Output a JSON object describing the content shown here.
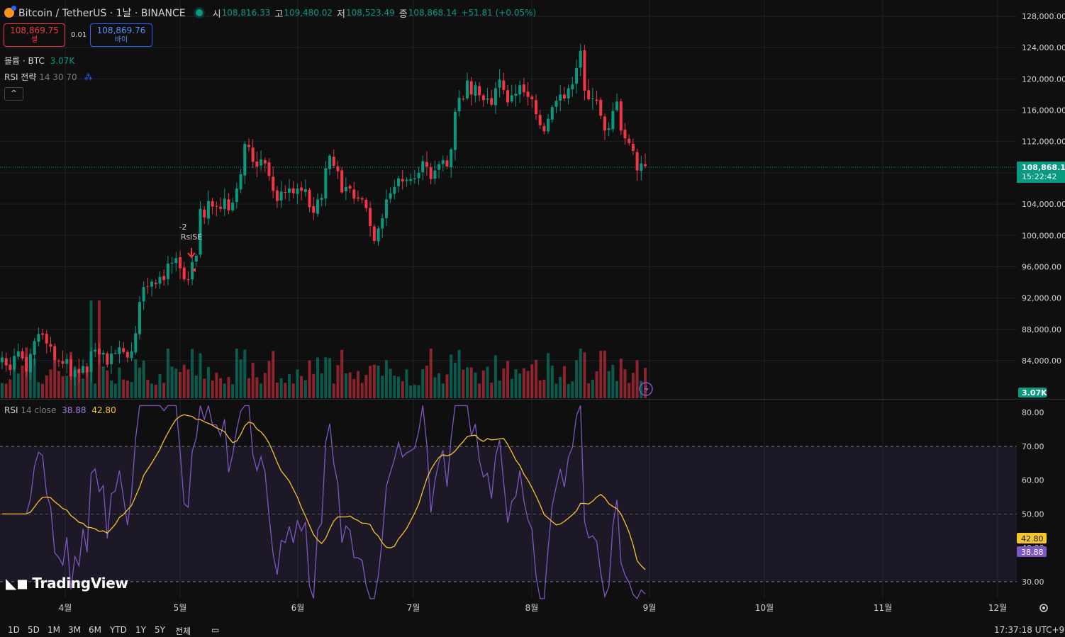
{
  "header": {
    "symbol": "Bitcoin / TetherUS · 1날 · BINANCE",
    "ohlc": [
      {
        "k": "시",
        "v": "108,816.33"
      },
      {
        "k": "고",
        "v": "109,480.02"
      },
      {
        "k": "저",
        "v": "108,523.49"
      },
      {
        "k": "종",
        "v": "108,868.14"
      }
    ],
    "change": "+51.81 (+0.05%)"
  },
  "trade": {
    "sell_price": "108,869.75",
    "sell_label": "셀",
    "spread": "0.01",
    "buy_price": "108,869.76",
    "buy_label": "바이"
  },
  "indicators": {
    "volume_label": "볼륨 · BTC",
    "volume_value": "3.07K",
    "strategy_label": "RSI 전략",
    "strategy_params": "14 30 70"
  },
  "rsi_legend": {
    "label": "RSI",
    "params": "14 close",
    "rsi_value": "38.88",
    "ma_value": "42.80"
  },
  "price_axis": [
    "128,000.00",
    "124,000.00",
    "120,000.00",
    "116,000.00",
    "112,000.00",
    "108,000.00",
    "104,000.00",
    "100,000.00",
    "96,000.00",
    "92,000.00",
    "88,000.00",
    "84,000.00"
  ],
  "rsi_axis": [
    "80.00",
    "70.00",
    "60.00",
    "50.00",
    "40.00",
    "30.00"
  ],
  "time_axis": [
    "4월",
    "5월",
    "6월",
    "7월",
    "8월",
    "9월",
    "10월",
    "11월",
    "12월"
  ],
  "last_price": {
    "price": "108,868.14",
    "countdown": "15:22:42"
  },
  "volume_badge": "3.07K",
  "rsi_badges": {
    "ma": "42.80",
    "rsi": "38.88"
  },
  "signal": {
    "qty": "-2",
    "name": "RsiSE"
  },
  "brand": "TradingView",
  "ranges": [
    "1D",
    "5D",
    "1M",
    "3M",
    "6M",
    "YTD",
    "1Y",
    "5Y",
    "전체"
  ],
  "clock": "17:37:18 UTC+9",
  "colors": {
    "up": "#089981",
    "down": "#f23645",
    "rsi": "#7e57c2",
    "rsi_ma": "#f7c42b",
    "accent": "#2962ff"
  },
  "chart_data": {
    "type": "candlestick",
    "title": "Bitcoin / TetherUS · 1날 · BINANCE",
    "ylim": [
      82000,
      129000
    ],
    "candles_close": [
      84400,
      83400,
      82800,
      84600,
      85200,
      84300,
      82600,
      84800,
      86500,
      87400,
      87300,
      86200,
      85800,
      84100,
      83900,
      83600,
      84200,
      82000,
      82800,
      82400,
      83300,
      82500,
      85200,
      85400,
      84800,
      85000,
      83500,
      84900,
      85000,
      85700,
      85100,
      84400,
      85200,
      87500,
      91500,
      93400,
      93500,
      94100,
      93800,
      94700,
      94300,
      96400,
      96500,
      97100,
      95800,
      94400,
      94300,
      96600,
      97400,
      103400,
      102300,
      104400,
      103700,
      103700,
      103400,
      104700,
      103200,
      104200,
      106000,
      107800,
      111700,
      111300,
      109400,
      108800,
      109700,
      109200,
      107600,
      105700,
      104400,
      105600,
      105500,
      106000,
      105400,
      106000,
      105700,
      105900,
      103600,
      102900,
      104600,
      104800,
      108600,
      110200,
      108900,
      108200,
      105500,
      106200,
      106000,
      104700,
      104700,
      104600,
      103500,
      101200,
      99300,
      100900,
      102200,
      104600,
      105400,
      106200,
      107300,
      106900,
      107100,
      107200,
      107300,
      108000,
      109500,
      108800,
      107200,
      108300,
      109100,
      109600,
      108800,
      111000,
      115800,
      117600,
      117400,
      119800,
      118000,
      119200,
      117900,
      117300,
      117500,
      116700,
      118800,
      119900,
      118600,
      117000,
      117900,
      118100,
      119200,
      118300,
      117700,
      117400,
      115500,
      114100,
      113300,
      114900,
      116400,
      117200,
      118000,
      117500,
      118800,
      119300,
      121400,
      123600,
      118500,
      117400,
      117500,
      117200,
      115300,
      113400,
      113700,
      115900,
      117100,
      113400,
      112400,
      111800,
      110800,
      108300,
      109200,
      108868.14
    ],
    "rsi": {
      "ylim": [
        25,
        82
      ],
      "overbought": 70,
      "oversold": 30,
      "mid": 50,
      "last_rsi": 38.88,
      "last_ma": 42.8
    }
  }
}
